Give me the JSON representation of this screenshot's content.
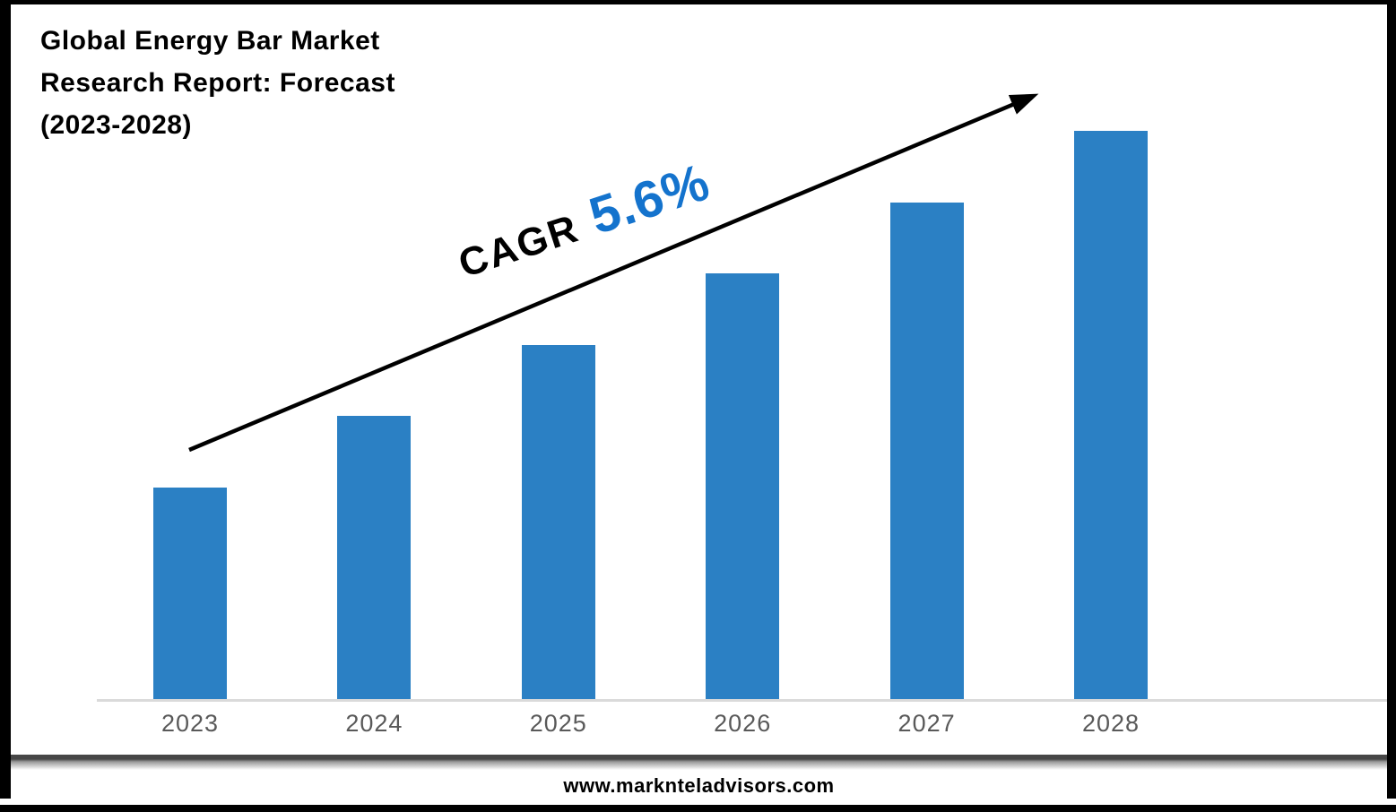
{
  "header": {
    "title_lines": [
      "Global Energy Bar Market",
      "Research Report: Forecast",
      "(2023-2028)"
    ]
  },
  "annotation": {
    "cagr_label": "CAGR",
    "cagr_value": "5.6%"
  },
  "footer": {
    "website": "www.marknteladvisors.com"
  },
  "colors": {
    "bar_blue": "#2B80C4",
    "cagr_value_blue": "#1473CD",
    "axis_line_gray": "#DADADA",
    "year_label_gray": "#595959",
    "frame_black": "#000000"
  },
  "icons": {
    "trend_arrow": "upward diagonal arrow indicating growth"
  },
  "chart_data": {
    "type": "bar",
    "title": "Global Energy Bar Market Research Report: Forecast (2023-2028)",
    "categories": [
      "2023",
      "2024",
      "2025",
      "2026",
      "2027",
      "2028"
    ],
    "values": [
      3,
      4,
      5,
      6,
      7,
      8
    ],
    "unit": "relative bar height (no value axis or data labels shown)",
    "xlabel": "",
    "ylabel": "",
    "ylim": [
      0,
      8
    ],
    "grid": false,
    "legend": false,
    "annotations": [
      "CAGR 5.6%",
      "black upward trend arrow from first bar to above last bar"
    ]
  }
}
